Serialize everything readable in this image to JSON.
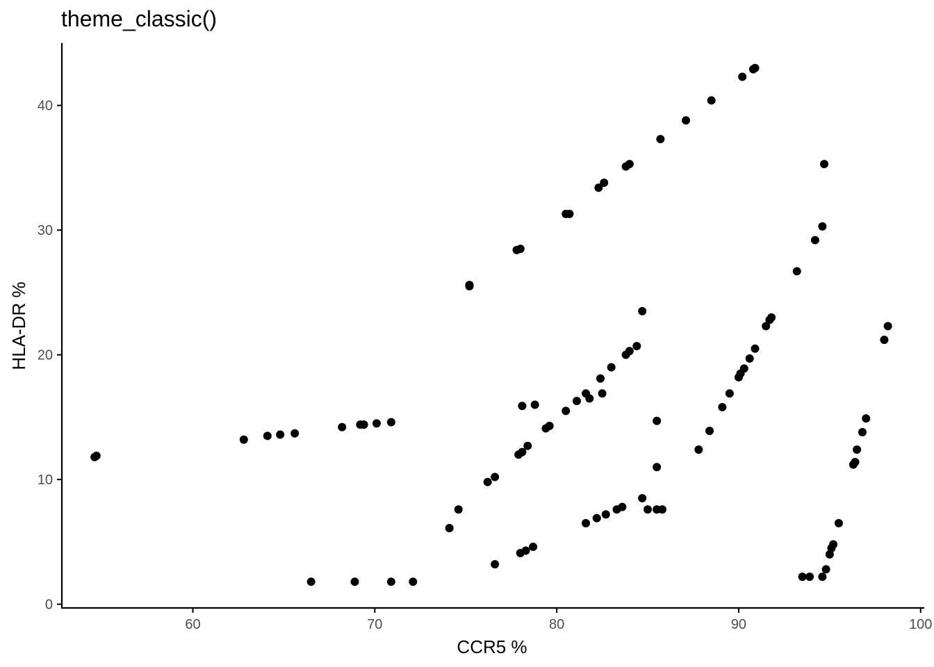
{
  "chart_data": {
    "type": "scatter",
    "title": "theme_classic()",
    "xlabel": "CCR5 %",
    "ylabel": "HLA-DR %",
    "xlim": [
      52.8,
      100.2
    ],
    "ylim": [
      -0.3,
      45
    ],
    "x_ticks": [
      60,
      70,
      80,
      90,
      100
    ],
    "y_ticks": [
      0,
      10,
      20,
      30,
      40
    ],
    "x_tick_labels": [
      "60",
      "70",
      "80",
      "90",
      "100"
    ],
    "y_tick_labels": [
      "0",
      "10",
      "20",
      "30",
      "40"
    ],
    "grid": false,
    "legend": "none",
    "point_color": "#000000",
    "points": [
      [
        54.6,
        11.8
      ],
      [
        54.7,
        11.9
      ],
      [
        62.8,
        13.2
      ],
      [
        64.1,
        13.5
      ],
      [
        64.8,
        13.6
      ],
      [
        65.6,
        13.7
      ],
      [
        68.2,
        14.2
      ],
      [
        69.2,
        14.4
      ],
      [
        69.4,
        14.4
      ],
      [
        70.1,
        14.5
      ],
      [
        70.9,
        14.6
      ],
      [
        66.5,
        1.8
      ],
      [
        68.9,
        1.8
      ],
      [
        70.9,
        1.8
      ],
      [
        72.1,
        1.8
      ],
      [
        74.1,
        6.1
      ],
      [
        74.6,
        7.6
      ],
      [
        76.2,
        9.8
      ],
      [
        76.6,
        10.2
      ],
      [
        77.9,
        12.0
      ],
      [
        78.1,
        12.2
      ],
      [
        78.4,
        12.7
      ],
      [
        79.4,
        14.1
      ],
      [
        79.6,
        14.3
      ],
      [
        78.1,
        15.9
      ],
      [
        78.8,
        16.0
      ],
      [
        80.5,
        15.5
      ],
      [
        81.1,
        16.3
      ],
      [
        81.6,
        16.9
      ],
      [
        81.8,
        16.5
      ],
      [
        82.5,
        16.9
      ],
      [
        82.4,
        18.1
      ],
      [
        83.0,
        19.0
      ],
      [
        83.8,
        20.0
      ],
      [
        84.0,
        20.3
      ],
      [
        84.4,
        20.7
      ],
      [
        84.7,
        23.5
      ],
      [
        76.6,
        3.2
      ],
      [
        78.0,
        4.1
      ],
      [
        78.3,
        4.3
      ],
      [
        78.7,
        4.6
      ],
      [
        81.6,
        6.5
      ],
      [
        82.2,
        6.9
      ],
      [
        82.7,
        7.2
      ],
      [
        83.3,
        7.6
      ],
      [
        83.6,
        7.8
      ],
      [
        84.7,
        8.5
      ],
      [
        85.0,
        7.6
      ],
      [
        85.5,
        7.6
      ],
      [
        85.8,
        7.6
      ],
      [
        85.5,
        11.0
      ],
      [
        85.5,
        14.7
      ],
      [
        75.2,
        25.5
      ],
      [
        75.2,
        25.6
      ],
      [
        77.8,
        28.4
      ],
      [
        78.0,
        28.5
      ],
      [
        80.5,
        31.3
      ],
      [
        80.7,
        31.3
      ],
      [
        82.3,
        33.4
      ],
      [
        82.6,
        33.8
      ],
      [
        83.8,
        35.1
      ],
      [
        84.0,
        35.3
      ],
      [
        85.7,
        37.3
      ],
      [
        87.1,
        38.8
      ],
      [
        88.5,
        40.4
      ],
      [
        90.2,
        42.3
      ],
      [
        90.8,
        42.9
      ],
      [
        90.9,
        43.0
      ],
      [
        87.8,
        12.4
      ],
      [
        88.4,
        13.9
      ],
      [
        89.1,
        15.8
      ],
      [
        89.5,
        16.9
      ],
      [
        90.0,
        18.2
      ],
      [
        90.1,
        18.5
      ],
      [
        90.3,
        18.9
      ],
      [
        90.6,
        19.7
      ],
      [
        90.9,
        20.5
      ],
      [
        91.5,
        22.3
      ],
      [
        91.7,
        22.8
      ],
      [
        91.8,
        23.0
      ],
      [
        93.2,
        26.7
      ],
      [
        94.2,
        29.2
      ],
      [
        94.6,
        30.3
      ],
      [
        94.7,
        35.3
      ],
      [
        93.5,
        2.2
      ],
      [
        93.9,
        2.2
      ],
      [
        94.6,
        2.2
      ],
      [
        94.8,
        2.8
      ],
      [
        95.0,
        4.0
      ],
      [
        95.1,
        4.5
      ],
      [
        95.2,
        4.8
      ],
      [
        95.5,
        6.5
      ],
      [
        96.3,
        11.2
      ],
      [
        96.4,
        11.4
      ],
      [
        96.5,
        12.4
      ],
      [
        96.8,
        13.8
      ],
      [
        97.0,
        14.9
      ],
      [
        98.0,
        21.2
      ],
      [
        98.2,
        22.3
      ]
    ]
  }
}
